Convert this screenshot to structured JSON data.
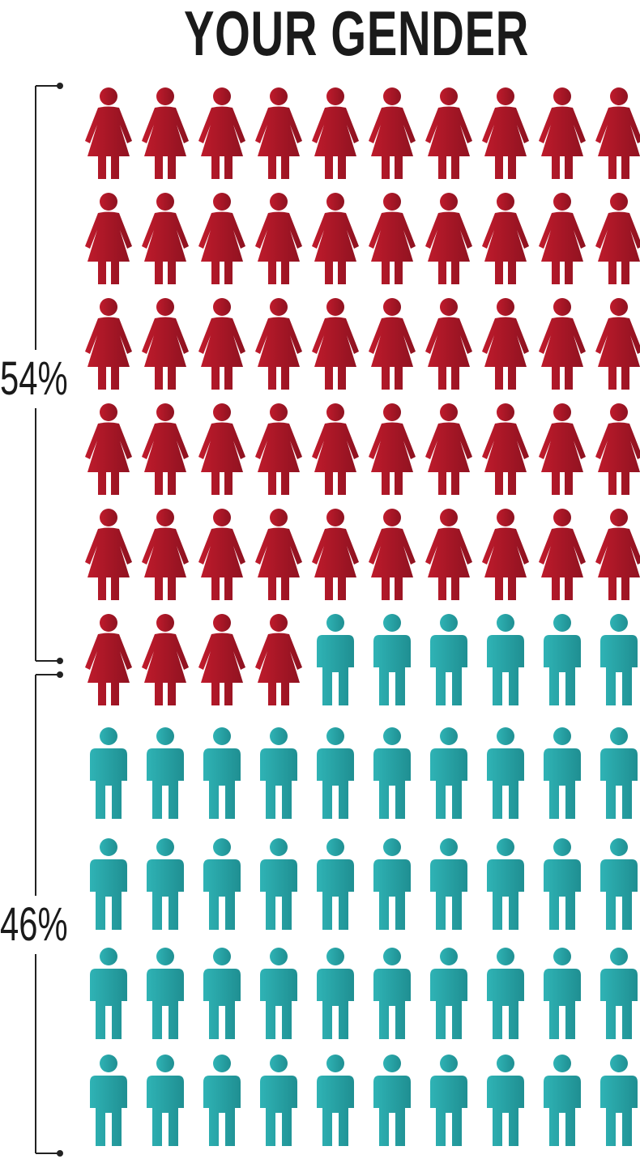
{
  "chart_data": {
    "type": "pictogram",
    "title": "YOUR GENDER",
    "units_total": 100,
    "columns": 10,
    "segments": [
      {
        "key": "women",
        "percent_label": "54%",
        "value": 54,
        "icon": "female-figure-icon",
        "color": "#c01b2c",
        "color_dark": "#8e1220"
      },
      {
        "key": "men",
        "percent_label": "46%",
        "value": 46,
        "icon": "male-figure-icon",
        "color": "#2fb3b5",
        "color_dark": "#1f8f92"
      }
    ]
  }
}
